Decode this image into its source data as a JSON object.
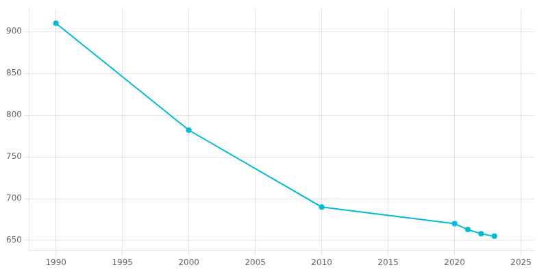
{
  "chart_data": {
    "type": "line",
    "x": [
      1990,
      2000,
      2010,
      2020,
      2021,
      2022,
      2023
    ],
    "values": [
      910,
      782,
      690,
      670,
      663,
      658,
      655
    ],
    "color": "#00BCD4",
    "marker": "circle",
    "xlim": [
      1988,
      2026
    ],
    "xticks": [
      1990,
      1995,
      2000,
      2005,
      2010,
      2015,
      2020,
      2025
    ],
    "ylim": [
      638,
      928
    ],
    "yticks": [
      650,
      700,
      750,
      800,
      850,
      900
    ],
    "grid": true
  }
}
